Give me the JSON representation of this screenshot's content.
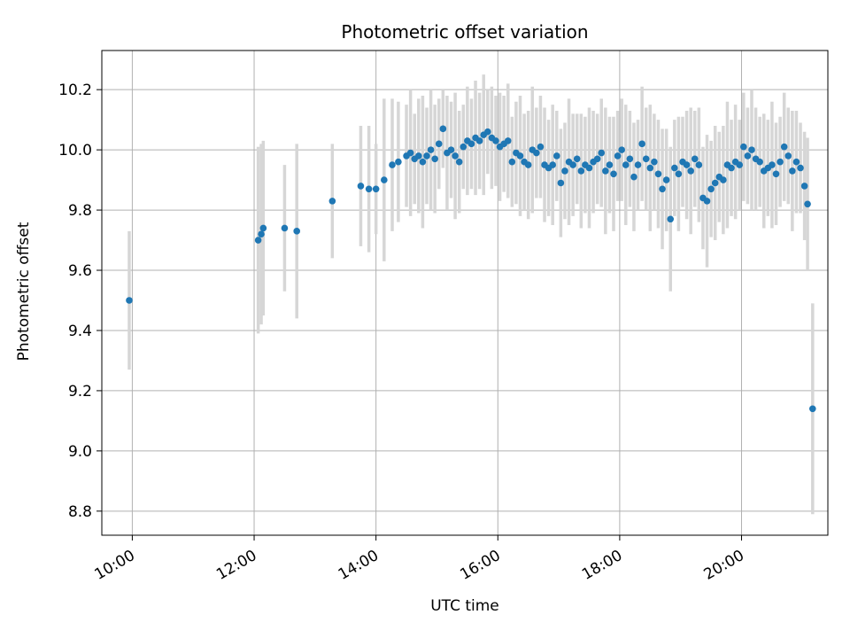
{
  "chart_data": {
    "type": "scatter",
    "title": "Photometric offset variation",
    "xlabel": "UTC time",
    "ylabel": "Photometric offset",
    "x_ticks": [
      "10:00",
      "12:00",
      "14:00",
      "16:00",
      "18:00",
      "20:00"
    ],
    "y_ticks": [
      8.8,
      9.0,
      9.2,
      9.4,
      9.6,
      9.8,
      10.0,
      10.2
    ],
    "xlim_minutes": [
      570,
      1285
    ],
    "ylim": [
      8.72,
      10.33
    ],
    "grid": true,
    "legend": "none",
    "marker_color": "#1f77b4",
    "errorbar_color": "#d6d6d6",
    "grid_color": "#b0b0b0",
    "points_format": [
      "utc_time",
      "offset",
      "error"
    ],
    "points": [
      [
        "09:57",
        9.5,
        0.23
      ],
      [
        "12:04",
        9.7,
        0.31
      ],
      [
        "12:07",
        9.72,
        0.3
      ],
      [
        "12:09",
        9.74,
        0.29
      ],
      [
        "12:30",
        9.74,
        0.21
      ],
      [
        "12:42",
        9.73,
        0.29
      ],
      [
        "13:17",
        9.83,
        0.19
      ],
      [
        "13:45",
        9.88,
        0.2
      ],
      [
        "13:53",
        9.87,
        0.21
      ],
      [
        "14:00",
        9.87,
        0.15
      ],
      [
        "14:08",
        9.9,
        0.27
      ],
      [
        "14:16",
        9.95,
        0.22
      ],
      [
        "14:22",
        9.96,
        0.2
      ],
      [
        "14:30",
        9.98,
        0.17
      ],
      [
        "14:34",
        9.99,
        0.21
      ],
      [
        "14:38",
        9.97,
        0.15
      ],
      [
        "14:42",
        9.98,
        0.19
      ],
      [
        "14:46",
        9.96,
        0.22
      ],
      [
        "14:50",
        9.98,
        0.16
      ],
      [
        "14:54",
        10.0,
        0.2
      ],
      [
        "14:58",
        9.97,
        0.18
      ],
      [
        "15:02",
        10.02,
        0.15
      ],
      [
        "15:06",
        10.07,
        0.13
      ],
      [
        "15:10",
        9.99,
        0.19
      ],
      [
        "15:14",
        10.0,
        0.16
      ],
      [
        "15:18",
        9.98,
        0.21
      ],
      [
        "15:22",
        9.96,
        0.17
      ],
      [
        "15:26",
        10.01,
        0.14
      ],
      [
        "15:30",
        10.03,
        0.18
      ],
      [
        "15:34",
        10.02,
        0.15
      ],
      [
        "15:38",
        10.04,
        0.19
      ],
      [
        "15:42",
        10.03,
        0.16
      ],
      [
        "15:46",
        10.05,
        0.2
      ],
      [
        "15:50",
        10.06,
        0.14
      ],
      [
        "15:54",
        10.04,
        0.17
      ],
      [
        "15:58",
        10.03,
        0.15
      ],
      [
        "16:02",
        10.01,
        0.18
      ],
      [
        "16:06",
        10.02,
        0.16
      ],
      [
        "16:10",
        10.03,
        0.19
      ],
      [
        "16:14",
        9.96,
        0.15
      ],
      [
        "16:18",
        9.99,
        0.17
      ],
      [
        "16:22",
        9.98,
        0.2
      ],
      [
        "16:26",
        9.96,
        0.16
      ],
      [
        "16:30",
        9.95,
        0.18
      ],
      [
        "16:34",
        10.0,
        0.21
      ],
      [
        "16:38",
        9.99,
        0.15
      ],
      [
        "16:42",
        10.01,
        0.17
      ],
      [
        "16:46",
        9.95,
        0.19
      ],
      [
        "16:50",
        9.94,
        0.16
      ],
      [
        "16:54",
        9.95,
        0.2
      ],
      [
        "16:58",
        9.98,
        0.15
      ],
      [
        "17:02",
        9.89,
        0.18
      ],
      [
        "17:06",
        9.93,
        0.16
      ],
      [
        "17:10",
        9.96,
        0.21
      ],
      [
        "17:14",
        9.95,
        0.17
      ],
      [
        "17:18",
        9.97,
        0.15
      ],
      [
        "17:22",
        9.93,
        0.19
      ],
      [
        "17:26",
        9.95,
        0.16
      ],
      [
        "17:30",
        9.94,
        0.2
      ],
      [
        "17:34",
        9.96,
        0.17
      ],
      [
        "17:38",
        9.97,
        0.15
      ],
      [
        "17:42",
        9.99,
        0.18
      ],
      [
        "17:46",
        9.93,
        0.21
      ],
      [
        "17:50",
        9.95,
        0.16
      ],
      [
        "17:54",
        9.92,
        0.19
      ],
      [
        "17:58",
        9.98,
        0.15
      ],
      [
        "18:02",
        10.0,
        0.17
      ],
      [
        "18:06",
        9.95,
        0.2
      ],
      [
        "18:10",
        9.97,
        0.16
      ],
      [
        "18:14",
        9.91,
        0.18
      ],
      [
        "18:18",
        9.95,
        0.15
      ],
      [
        "18:22",
        10.02,
        0.19
      ],
      [
        "18:26",
        9.97,
        0.17
      ],
      [
        "18:30",
        9.94,
        0.21
      ],
      [
        "18:34",
        9.96,
        0.16
      ],
      [
        "18:38",
        9.92,
        0.18
      ],
      [
        "18:42",
        9.87,
        0.2
      ],
      [
        "18:46",
        9.9,
        0.17
      ],
      [
        "18:50",
        9.77,
        0.24
      ],
      [
        "18:54",
        9.94,
        0.16
      ],
      [
        "18:58",
        9.92,
        0.19
      ],
      [
        "19:02",
        9.96,
        0.15
      ],
      [
        "19:06",
        9.95,
        0.18
      ],
      [
        "19:10",
        9.93,
        0.21
      ],
      [
        "19:14",
        9.97,
        0.16
      ],
      [
        "19:18",
        9.95,
        0.19
      ],
      [
        "19:22",
        9.84,
        0.17
      ],
      [
        "19:26",
        9.83,
        0.22
      ],
      [
        "19:30",
        9.87,
        0.16
      ],
      [
        "19:34",
        9.89,
        0.19
      ],
      [
        "19:38",
        9.91,
        0.15
      ],
      [
        "19:42",
        9.9,
        0.18
      ],
      [
        "19:46",
        9.95,
        0.21
      ],
      [
        "19:50",
        9.94,
        0.16
      ],
      [
        "19:54",
        9.96,
        0.19
      ],
      [
        "19:58",
        9.95,
        0.15
      ],
      [
        "20:02",
        10.01,
        0.18
      ],
      [
        "20:06",
        9.98,
        0.16
      ],
      [
        "20:10",
        10.0,
        0.2
      ],
      [
        "20:14",
        9.97,
        0.17
      ],
      [
        "20:18",
        9.96,
        0.15
      ],
      [
        "20:22",
        9.93,
        0.19
      ],
      [
        "20:26",
        9.94,
        0.16
      ],
      [
        "20:30",
        9.95,
        0.21
      ],
      [
        "20:34",
        9.92,
        0.17
      ],
      [
        "20:38",
        9.96,
        0.15
      ],
      [
        "20:42",
        10.01,
        0.18
      ],
      [
        "20:46",
        9.98,
        0.16
      ],
      [
        "20:50",
        9.93,
        0.2
      ],
      [
        "20:54",
        9.96,
        0.17
      ],
      [
        "20:58",
        9.94,
        0.15
      ],
      [
        "21:02",
        9.88,
        0.18
      ],
      [
        "21:05",
        9.82,
        0.22
      ],
      [
        "21:10",
        9.14,
        0.35
      ]
    ]
  }
}
